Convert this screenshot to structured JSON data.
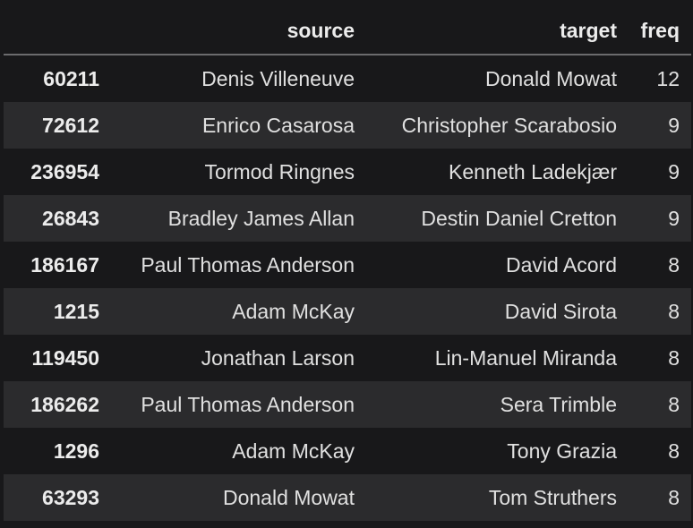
{
  "table": {
    "columns": [
      "",
      "source",
      "target",
      "freq"
    ],
    "rows": [
      {
        "index": "60211",
        "source": "Denis Villeneuve",
        "target": "Donald Mowat",
        "freq": "12"
      },
      {
        "index": "72612",
        "source": "Enrico Casarosa",
        "target": "Christopher Scarabosio",
        "freq": "9"
      },
      {
        "index": "236954",
        "source": "Tormod Ringnes",
        "target": "Kenneth Ladekjær",
        "freq": "9"
      },
      {
        "index": "26843",
        "source": "Bradley James Allan",
        "target": "Destin Daniel Cretton",
        "freq": "9"
      },
      {
        "index": "186167",
        "source": "Paul Thomas Anderson",
        "target": "David Acord",
        "freq": "8"
      },
      {
        "index": "1215",
        "source": "Adam McKay",
        "target": "David Sirota",
        "freq": "8"
      },
      {
        "index": "119450",
        "source": "Jonathan Larson",
        "target": "Lin-Manuel Miranda",
        "freq": "8"
      },
      {
        "index": "186262",
        "source": "Paul Thomas Anderson",
        "target": "Sera Trimble",
        "freq": "8"
      },
      {
        "index": "1296",
        "source": "Adam McKay",
        "target": "Tony Grazia",
        "freq": "8"
      },
      {
        "index": "63293",
        "source": "Donald Mowat",
        "target": "Tom Struthers",
        "freq": "8"
      }
    ]
  },
  "colors": {
    "background": "#18181a",
    "row_stripe": "#2b2b2d",
    "header_rule": "#6b6b6d",
    "text": "#e8e8e8"
  }
}
